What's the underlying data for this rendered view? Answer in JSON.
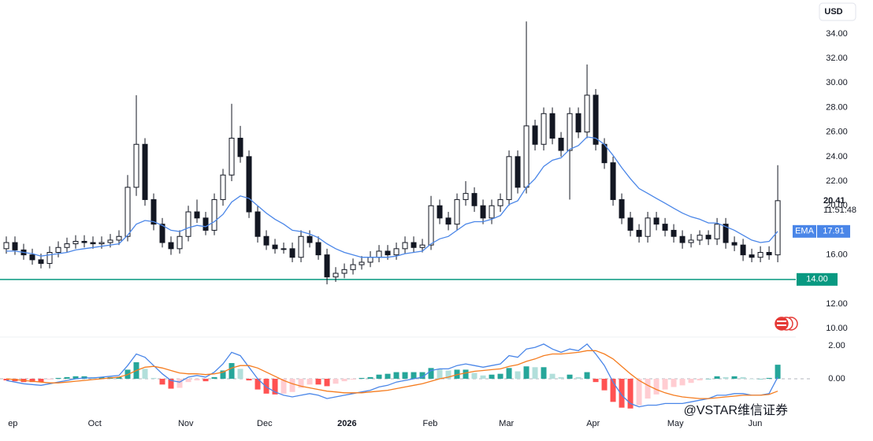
{
  "chart_data": [
    {
      "type": "candlestick",
      "currency": "USD",
      "open": [
        16.5,
        17.0,
        16.4,
        16.0,
        15.6,
        15.3,
        16.2,
        16.6,
        16.9,
        17.1,
        17.0,
        16.9,
        17.0,
        17.2,
        17.5,
        21.5,
        25.0,
        20.5,
        18.5,
        17.0,
        16.5,
        17.5,
        19.5,
        19.0,
        18.0,
        20.5,
        22.5,
        25.5,
        24.0,
        19.5,
        17.5,
        16.8,
        16.5,
        16.5,
        15.8,
        17.5,
        17.0,
        16.0,
        14.2,
        14.5,
        14.8,
        15.2,
        15.4,
        15.8,
        16.3,
        16.0,
        16.5,
        17.0,
        16.6,
        16.8,
        20.0,
        19.0,
        18.5,
        20.5,
        21.0,
        20.0,
        19.0,
        20.0,
        20.5,
        24.0,
        21.5,
        26.5,
        25.0,
        27.5,
        25.5,
        24.5,
        27.5,
        26.0,
        29.0,
        25.0,
        23.5,
        20.5,
        19.0,
        18.0,
        17.5,
        19.0,
        18.5,
        18.0,
        17.5,
        17.0,
        17.2,
        17.6,
        17.3,
        18.5,
        17.0,
        16.8,
        16.0,
        15.8,
        16.2,
        16.0
      ],
      "high": [
        17.5,
        17.5,
        16.9,
        16.5,
        16.1,
        16.7,
        17.1,
        17.4,
        17.6,
        17.6,
        17.5,
        17.5,
        17.7,
        18.0,
        22.5,
        29.0,
        25.5,
        21.0,
        19.0,
        17.5,
        18.0,
        20.0,
        20.5,
        19.5,
        21.0,
        23.0,
        28.3,
        26.5,
        24.5,
        20.0,
        18.0,
        17.3,
        17.0,
        17.0,
        18.0,
        18.0,
        17.5,
        16.5,
        15.0,
        15.3,
        15.7,
        15.9,
        16.3,
        16.8,
        16.8,
        17.0,
        17.5,
        17.5,
        17.3,
        20.8,
        20.5,
        19.5,
        21.0,
        22.0,
        21.5,
        20.5,
        20.5,
        21.0,
        24.5,
        24.5,
        35.0,
        27.0,
        28.0,
        28.0,
        26.0,
        28.0,
        28.0,
        31.5,
        29.5,
        25.5,
        24.0,
        21.0,
        19.5,
        18.5,
        19.5,
        19.5,
        19.0,
        18.5,
        18.0,
        17.7,
        18.0,
        18.0,
        19.0,
        19.0,
        17.5,
        17.3,
        16.5,
        16.7,
        16.7,
        23.3
      ],
      "low": [
        16.1,
        16.0,
        15.6,
        15.2,
        14.9,
        14.9,
        15.8,
        16.2,
        16.5,
        16.6,
        16.5,
        16.5,
        16.6,
        16.8,
        17.1,
        20.8,
        20.0,
        18.0,
        16.6,
        16.0,
        16.1,
        17.1,
        18.6,
        17.6,
        17.6,
        20.0,
        22.0,
        23.5,
        19.0,
        17.0,
        16.4,
        16.1,
        16.1,
        15.4,
        15.4,
        16.6,
        15.6,
        13.6,
        13.8,
        14.1,
        14.4,
        14.8,
        15.0,
        15.4,
        15.6,
        15.6,
        16.1,
        16.2,
        16.2,
        16.4,
        18.5,
        18.0,
        18.0,
        20.0,
        19.5,
        18.5,
        18.5,
        19.5,
        20.0,
        21.0,
        21.0,
        24.5,
        24.5,
        25.0,
        24.0,
        20.5,
        25.5,
        25.5,
        24.5,
        23.0,
        20.0,
        18.5,
        17.5,
        17.0,
        17.0,
        18.0,
        17.5,
        17.0,
        16.5,
        16.6,
        16.8,
        16.8,
        16.8,
        16.5,
        16.3,
        15.5,
        15.4,
        15.4,
        15.6,
        15.4
      ],
      "close": [
        17.0,
        16.4,
        16.0,
        15.6,
        15.3,
        16.2,
        16.6,
        16.9,
        17.1,
        17.0,
        16.9,
        17.0,
        17.2,
        17.5,
        21.5,
        25.0,
        20.5,
        18.5,
        17.0,
        16.5,
        17.5,
        19.5,
        19.0,
        18.0,
        20.5,
        22.5,
        25.5,
        24.0,
        19.5,
        17.5,
        16.8,
        16.5,
        16.5,
        15.8,
        17.5,
        17.0,
        16.0,
        14.2,
        14.5,
        14.8,
        15.2,
        15.4,
        15.8,
        16.3,
        16.0,
        16.5,
        17.0,
        16.6,
        16.8,
        20.0,
        19.0,
        18.5,
        20.5,
        21.0,
        20.0,
        19.0,
        20.0,
        20.5,
        24.0,
        21.5,
        26.5,
        25.0,
        27.5,
        25.5,
        24.5,
        27.5,
        26.0,
        29.0,
        25.0,
        23.5,
        20.5,
        19.0,
        18.0,
        17.5,
        19.0,
        18.5,
        18.0,
        17.5,
        17.0,
        17.2,
        17.6,
        17.3,
        18.5,
        17.0,
        16.8,
        16.0,
        15.8,
        16.2,
        16.0,
        20.41
      ],
      "up_color": "#ffffff",
      "down_color": "#131722",
      "countdown": "11:51:48",
      "ema": {
        "name": "EMA",
        "color": "#4a86e8",
        "values": [
          16.3,
          16.3,
          16.2,
          16.1,
          15.9,
          16.0,
          16.1,
          16.2,
          16.4,
          16.5,
          16.6,
          16.7,
          16.8,
          16.9,
          17.6,
          18.5,
          18.8,
          18.7,
          18.4,
          18.0,
          17.9,
          18.2,
          18.4,
          18.3,
          18.7,
          19.3,
          20.3,
          20.8,
          20.6,
          20.0,
          19.4,
          18.9,
          18.5,
          18.0,
          17.9,
          17.7,
          17.4,
          16.9,
          16.5,
          16.2,
          16.0,
          15.8,
          15.8,
          15.8,
          15.8,
          15.9,
          16.1,
          16.2,
          16.3,
          16.9,
          17.3,
          17.5,
          18.0,
          18.5,
          18.7,
          18.7,
          18.9,
          19.2,
          20.1,
          20.4,
          21.5,
          22.2,
          23.2,
          23.7,
          23.9,
          24.6,
          24.9,
          25.6,
          25.5,
          25.0,
          24.1,
          23.1,
          22.2,
          21.4,
          21.0,
          20.6,
          20.2,
          19.8,
          19.4,
          19.1,
          18.9,
          18.6,
          18.6,
          18.3,
          18.0,
          17.6,
          17.2,
          17.0,
          17.1,
          17.91
        ]
      },
      "hline": {
        "value": 14,
        "label": "14.00",
        "color": "#089981"
      },
      "ylim": [
        9.5,
        36.75
      ],
      "yticks": [
        {
          "value": 10,
          "label": "10.00"
        },
        {
          "value": 12,
          "label": "12.00"
        },
        {
          "value": 16,
          "label": "16.00"
        },
        {
          "value": 18,
          "label": "18.00"
        },
        {
          "value": 20,
          "label": "20.00"
        },
        {
          "value": 22,
          "label": "22.00"
        },
        {
          "value": 24,
          "label": "24.00"
        },
        {
          "value": 26,
          "label": "26.00"
        },
        {
          "value": 28,
          "label": "28.00"
        },
        {
          "value": 30,
          "label": "30.00"
        },
        {
          "value": 32,
          "label": "32.00"
        },
        {
          "value": 34,
          "label": "34.00"
        }
      ],
      "xlim": [
        0,
        90.9
      ],
      "xticks": [
        {
          "value": 0.2,
          "label": "ep"
        },
        {
          "value": 10.2,
          "label": "Oct"
        },
        {
          "value": 20.7,
          "label": "Nov"
        },
        {
          "value": 29.8,
          "label": "Dec"
        },
        {
          "value": 39.3,
          "label": "2026"
        },
        {
          "value": 48.9,
          "label": "Feb"
        },
        {
          "value": 57.7,
          "label": "Mar"
        },
        {
          "value": 67.7,
          "label": "Apr"
        },
        {
          "value": 77.2,
          "label": "May"
        },
        {
          "value": 86.4,
          "label": "Jun"
        }
      ]
    },
    {
      "type": "macd",
      "histogram": {
        "colors": [
          "#26a69a",
          "#b2dfdb",
          "#ff5252",
          "#ffcdd2"
        ],
        "values": [
          -0.1,
          -0.15,
          -0.2,
          -0.2,
          -0.2,
          -0.05,
          0.05,
          0.1,
          0.15,
          0.15,
          0.1,
          0.1,
          0.1,
          0.1,
          0.55,
          1.0,
          0.6,
          0.05,
          -0.35,
          -0.6,
          -0.55,
          -0.2,
          -0.1,
          -0.15,
          0.1,
          0.5,
          0.95,
          0.6,
          -0.1,
          -0.65,
          -0.9,
          -0.95,
          -0.9,
          -0.8,
          -0.55,
          -0.35,
          -0.35,
          -0.45,
          -0.3,
          -0.15,
          -0.05,
          0.05,
          0.1,
          0.25,
          0.3,
          0.4,
          0.4,
          0.4,
          0.4,
          0.65,
          0.6,
          0.5,
          0.55,
          0.55,
          0.35,
          0.2,
          0.25,
          0.3,
          0.65,
          0.45,
          0.75,
          0.7,
          0.7,
          0.3,
          0.1,
          0.25,
          0.1,
          0.4,
          -0.2,
          -0.7,
          -1.4,
          -1.75,
          -1.8,
          -1.6,
          -1.2,
          -0.95,
          -0.65,
          -0.5,
          -0.4,
          -0.25,
          -0.1,
          0.0,
          0.15,
          0.1,
          0.15,
          0.1,
          0.0,
          0.0,
          0.05,
          0.85
        ]
      },
      "series": [
        {
          "color": "#4a86e8",
          "values": [
            -0.1,
            -0.2,
            -0.3,
            -0.35,
            -0.4,
            -0.3,
            -0.2,
            -0.1,
            0.0,
            0.05,
            0.05,
            0.1,
            0.15,
            0.2,
            0.8,
            1.5,
            1.3,
            0.8,
            0.3,
            -0.1,
            -0.2,
            0.1,
            0.2,
            0.1,
            0.4,
            0.9,
            1.6,
            1.4,
            0.7,
            0.0,
            -0.5,
            -0.8,
            -1.0,
            -1.1,
            -1.0,
            -0.9,
            -1.0,
            -1.2,
            -1.1,
            -1.0,
            -0.9,
            -0.8,
            -0.7,
            -0.5,
            -0.4,
            -0.2,
            -0.1,
            0.0,
            0.1,
            0.5,
            0.6,
            0.6,
            0.8,
            0.9,
            0.8,
            0.7,
            0.8,
            0.9,
            1.4,
            1.3,
            1.8,
            1.9,
            2.1,
            1.8,
            1.6,
            1.8,
            1.7,
            2.1,
            1.5,
            0.8,
            -0.2,
            -1.0,
            -1.5,
            -1.7,
            -1.6,
            -1.6,
            -1.5,
            -1.5,
            -1.5,
            -1.4,
            -1.3,
            -1.2,
            -1.0,
            -1.0,
            -0.9,
            -0.9,
            -1.0,
            -1.0,
            -0.9,
            0.1
          ]
        },
        {
          "color": "#f57c1f",
          "values": [
            0.0,
            -0.05,
            -0.1,
            -0.15,
            -0.2,
            -0.25,
            -0.25,
            -0.2,
            -0.15,
            -0.1,
            -0.05,
            0.0,
            0.05,
            0.1,
            0.25,
            0.5,
            0.7,
            0.75,
            0.65,
            0.5,
            0.35,
            0.3,
            0.3,
            0.25,
            0.3,
            0.4,
            0.65,
            0.8,
            0.8,
            0.65,
            0.4,
            0.15,
            -0.1,
            -0.3,
            -0.45,
            -0.55,
            -0.65,
            -0.75,
            -0.8,
            -0.85,
            -0.85,
            -0.85,
            -0.8,
            -0.75,
            -0.7,
            -0.6,
            -0.5,
            -0.4,
            -0.3,
            -0.15,
            0.0,
            0.1,
            0.25,
            0.35,
            0.45,
            0.5,
            0.55,
            0.6,
            0.75,
            0.85,
            1.05,
            1.2,
            1.4,
            1.5,
            1.5,
            1.55,
            1.6,
            1.7,
            1.7,
            1.5,
            1.2,
            0.75,
            0.3,
            -0.1,
            -0.4,
            -0.65,
            -0.85,
            -1.0,
            -1.1,
            -1.15,
            -1.2,
            -1.2,
            -1.15,
            -1.1,
            -1.05,
            -1.0,
            -1.0,
            -1.0,
            -0.95,
            -0.75
          ]
        }
      ],
      "ylim": [
        -2.1,
        2.43
      ],
      "yticks": [
        {
          "value": 0,
          "label": "0.00"
        },
        {
          "value": 2,
          "label": "2.00"
        }
      ]
    }
  ],
  "watermark": "@VSTAR维信证券"
}
